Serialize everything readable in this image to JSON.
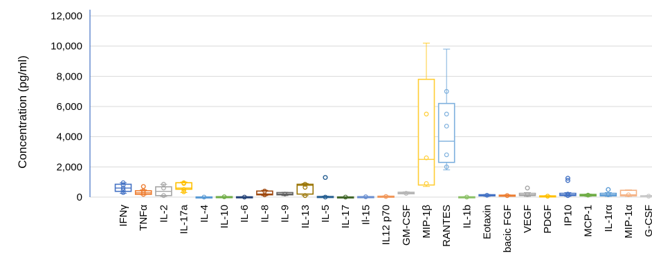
{
  "chart_data": {
    "type": "box",
    "ylabel": "Concentration (pg/ml)",
    "xlabel": "",
    "ylim": [
      0,
      12000
    ],
    "yticks": [
      0,
      2000,
      4000,
      6000,
      8000,
      10000,
      12000
    ],
    "ytick_labels": [
      "0",
      "2,000",
      "4,000",
      "6,000",
      "8,000",
      "10,000",
      "12,000"
    ],
    "grid": true,
    "legend": "none",
    "series": [
      {
        "label": "IFNγ",
        "color": "#4472c4",
        "min": 250,
        "q1": 380,
        "median": 600,
        "q3": 850,
        "max": 950,
        "points": [
          300,
          450,
          600,
          800,
          950
        ],
        "outliers": []
      },
      {
        "label": "TNFα",
        "color": "#ed7d31",
        "min": 150,
        "q1": 180,
        "median": 280,
        "q3": 420,
        "max": 480,
        "points": [
          180,
          300,
          420
        ],
        "outliers": [
          700
        ]
      },
      {
        "label": "IL-2",
        "color": "#a5a5a5",
        "min": 50,
        "q1": 100,
        "median": 380,
        "q3": 680,
        "max": 850,
        "points": [
          100,
          600,
          850
        ],
        "outliers": []
      },
      {
        "label": "IL-17a",
        "color": "#ffc000",
        "min": 300,
        "q1": 520,
        "median": 600,
        "q3": 950,
        "max": 1000,
        "points": [
          350,
          500,
          900,
          950
        ],
        "outliers": []
      },
      {
        "label": "IL-4",
        "color": "#5b9bd5",
        "min": 0,
        "q1": 0,
        "median": 0,
        "q3": 10,
        "max": 20,
        "points": [
          0
        ],
        "outliers": []
      },
      {
        "label": "IL-10",
        "color": "#70ad47",
        "min": 0,
        "q1": 10,
        "median": 20,
        "q3": 30,
        "max": 40,
        "points": [
          20
        ],
        "outliers": []
      },
      {
        "label": "IL-6",
        "color": "#264478",
        "min": 0,
        "q1": 0,
        "median": 10,
        "q3": 20,
        "max": 30,
        "points": [
          0
        ],
        "outliers": []
      },
      {
        "label": "IL-8",
        "color": "#9e480e",
        "min": 100,
        "q1": 150,
        "median": 200,
        "q3": 400,
        "max": 450,
        "points": [
          150,
          400
        ],
        "outliers": []
      },
      {
        "label": "IL-9",
        "color": "#636363",
        "min": 100,
        "q1": 150,
        "median": 200,
        "q3": 300,
        "max": 320,
        "points": [
          200
        ],
        "outliers": []
      },
      {
        "label": "IL-13",
        "color": "#997300",
        "min": 100,
        "q1": 200,
        "median": 780,
        "q3": 850,
        "max": 900,
        "points": [
          100,
          650,
          850
        ],
        "outliers": []
      },
      {
        "label": "IL-5",
        "color": "#255e91",
        "min": 0,
        "q1": 0,
        "median": 20,
        "q3": 40,
        "max": 60,
        "points": [
          0
        ],
        "outliers": [
          1300
        ]
      },
      {
        "label": "IL-17",
        "color": "#43682b",
        "min": 0,
        "q1": 0,
        "median": 0,
        "q3": 10,
        "max": 20,
        "points": [
          0
        ],
        "outliers": []
      },
      {
        "label": "Il-15",
        "color": "#698ed0",
        "min": 0,
        "q1": 10,
        "median": 20,
        "q3": 30,
        "max": 40,
        "points": [
          20
        ],
        "outliers": []
      },
      {
        "label": "IL12 p70",
        "color": "#f1975a",
        "min": 10,
        "q1": 20,
        "median": 40,
        "q3": 60,
        "max": 80,
        "points": [
          40
        ],
        "outliers": []
      },
      {
        "label": "GM-CSF",
        "color": "#b7b7b7",
        "min": 200,
        "q1": 220,
        "median": 280,
        "q3": 320,
        "max": 350,
        "points": [
          250
        ],
        "outliers": []
      },
      {
        "label": "MIP-1β",
        "color": "#ffcd33",
        "min": 700,
        "q1": 800,
        "median": 2500,
        "q3": 7800,
        "max": 10200,
        "points": [
          900,
          2600,
          5500
        ],
        "outliers": []
      },
      {
        "label": "RANTES",
        "color": "#7cafdd",
        "min": 1800,
        "q1": 2300,
        "median": 3700,
        "q3": 6200,
        "max": 9800,
        "points": [
          2000,
          2800,
          4700,
          5500,
          7000
        ],
        "outliers": []
      },
      {
        "label": "IL-1b",
        "color": "#8cc168",
        "min": 0,
        "q1": 0,
        "median": 10,
        "q3": 20,
        "max": 30,
        "points": [
          0
        ],
        "outliers": []
      },
      {
        "label": "Eotaxin",
        "color": "#4472c4",
        "min": 50,
        "q1": 80,
        "median": 120,
        "q3": 160,
        "max": 180,
        "points": [
          120
        ],
        "outliers": []
      },
      {
        "label": "bacic FGF",
        "color": "#ed7d31",
        "min": 50,
        "q1": 70,
        "median": 100,
        "q3": 130,
        "max": 150,
        "points": [
          100
        ],
        "outliers": []
      },
      {
        "label": "VEGF",
        "color": "#a5a5a5",
        "min": 50,
        "q1": 100,
        "median": 150,
        "q3": 250,
        "max": 300,
        "points": [
          150
        ],
        "outliers": [
          600
        ]
      },
      {
        "label": "PDGF",
        "color": "#ffc000",
        "min": 20,
        "q1": 40,
        "median": 60,
        "q3": 80,
        "max": 100,
        "points": [
          60
        ],
        "outliers": []
      },
      {
        "label": "IP10",
        "color": "#4472c4",
        "min": 50,
        "q1": 100,
        "median": 150,
        "q3": 250,
        "max": 300,
        "points": [
          100,
          200
        ],
        "outliers": [
          1100,
          1250
        ]
      },
      {
        "label": "MCP-1",
        "color": "#70ad47",
        "min": 50,
        "q1": 80,
        "median": 130,
        "q3": 180,
        "max": 200,
        "points": [
          130
        ],
        "outliers": []
      },
      {
        "label": "IL-1rα",
        "color": "#5b9bd5",
        "min": 50,
        "q1": 80,
        "median": 150,
        "q3": 250,
        "max": 300,
        "points": [
          150
        ],
        "outliers": [
          500
        ]
      },
      {
        "label": "MIP-1α",
        "color": "#f4b183",
        "min": 50,
        "q1": 80,
        "median": 150,
        "q3": 450,
        "max": 480,
        "points": [
          150
        ],
        "outliers": []
      },
      {
        "label": "G-CSF",
        "color": "#c9c9c9",
        "min": 20,
        "q1": 40,
        "median": 60,
        "q3": 90,
        "max": 110,
        "points": [
          60
        ],
        "outliers": []
      }
    ]
  }
}
